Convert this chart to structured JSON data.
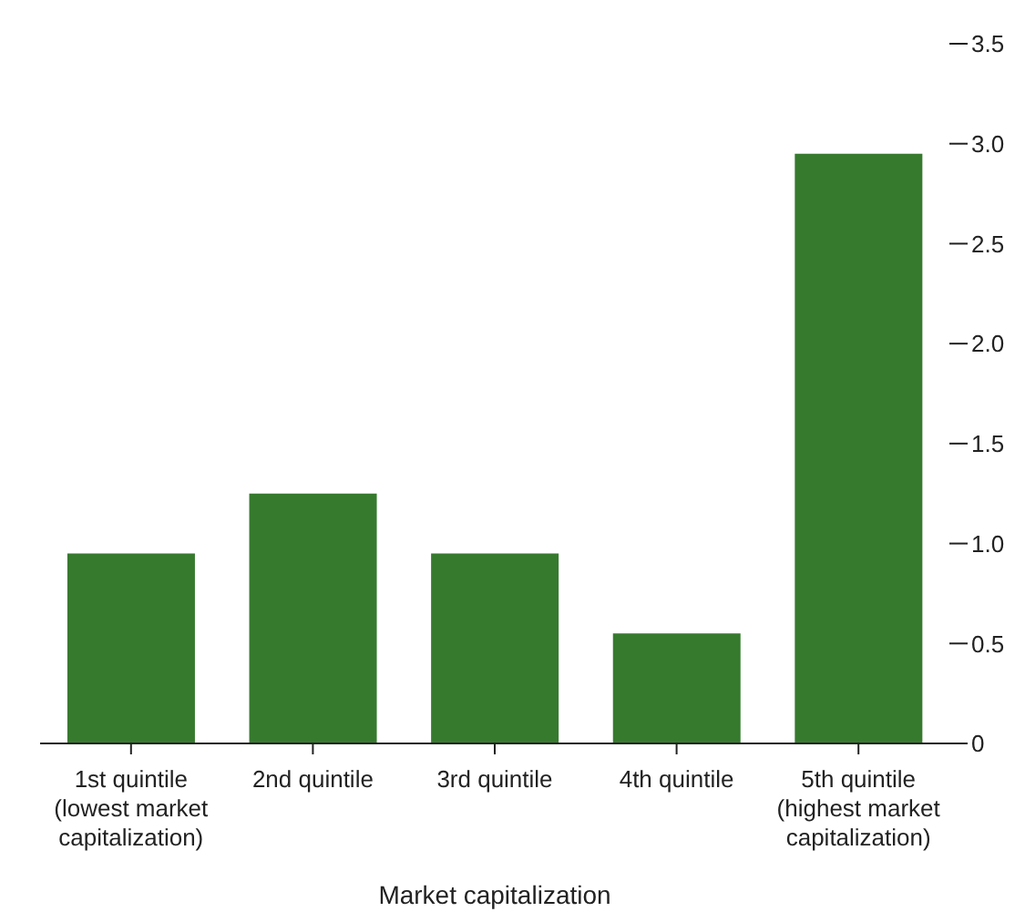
{
  "chart_data": {
    "type": "bar",
    "xlabel": "Market capitalization",
    "categories": [
      "1st quintile\n(lowest market\ncapitalization)",
      "2nd quintile",
      "3rd quintile",
      "4th quintile",
      "5th quintile\n(highest market\ncapitalization)"
    ],
    "values": [
      0.95,
      1.25,
      0.95,
      0.55,
      2.95
    ],
    "color": "#367a2e",
    "ylim": [
      0,
      3.5
    ],
    "yticks": [
      0,
      0.5,
      {
        "value": 1,
        "label": "1.0"
      },
      {
        "value": 1.5,
        "label": "1.5"
      },
      {
        "value": 2,
        "label": "2.0"
      },
      {
        "value": 2.5,
        "label": "2.5"
      },
      {
        "value": 3,
        "label": "3.0"
      },
      {
        "value": 3.5,
        "label": "3.5"
      }
    ]
  }
}
